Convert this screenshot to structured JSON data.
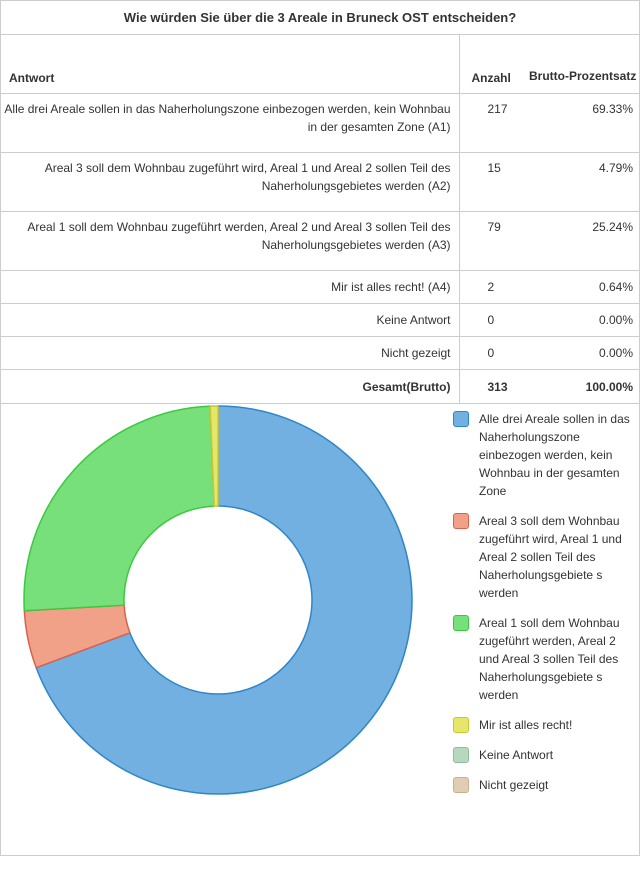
{
  "title": "Wie würden Sie über die 3 Areale in Bruneck OST entscheiden?",
  "table": {
    "headers": {
      "answer": "Antwort",
      "count": "Anzahl",
      "percent": "Brutto-Prozentsatz"
    },
    "rows": [
      {
        "answer": "Alle drei Areale sollen in das Naherholungszone einbezogen werden, kein Wohnbau in der gesamten Zone (A1)",
        "count": "217",
        "percent": "69.33%"
      },
      {
        "answer": "Areal 3 soll dem Wohnbau zugeführt wird, Areal 1 und Areal 2 sollen Teil des Naherholungsgebietes werden (A2)",
        "count": "15",
        "percent": "4.79%"
      },
      {
        "answer": "Areal 1 soll dem Wohnbau zugeführt werden, Areal 2 und Areal 3 sollen Teil des Naherholungsgebietes werden (A3)",
        "count": "79",
        "percent": "25.24%"
      },
      {
        "answer": "Mir ist alles recht! (A4)",
        "count": "2",
        "percent": "0.64%"
      },
      {
        "answer": "Keine Antwort",
        "count": "0",
        "percent": "0.00%"
      },
      {
        "answer": "Nicht gezeigt",
        "count": "0",
        "percent": "0.00%"
      }
    ],
    "total": {
      "label": "Gesamt(Brutto)",
      "count": "313",
      "percent": "100.00%"
    }
  },
  "chart_data": {
    "type": "pie",
    "donut": true,
    "categories": [
      "Alle drei Areale sollen in das Naherholungszone einbezogen werden, kein Wohnbau in der gesamten Zone",
      "Areal 3 soll dem Wohnbau zugeführt wird, Areal 1 und Areal 2 sollen Teil des Naherholungsgebiete s werden",
      "Areal 1 soll dem Wohnbau zugeführt werden, Areal 2 und Areal 3 sollen Teil des Naherholungsgebiete s werden",
      "Mir ist alles recht!",
      "Keine Antwort",
      "Nicht gezeigt"
    ],
    "values": [
      217,
      15,
      79,
      2,
      0,
      0
    ],
    "colors": [
      "#71b0e0",
      "#f0a188",
      "#77e07a",
      "#e6e76a",
      "#b8d8bd",
      "#e0cdb4"
    ],
    "strokes": [
      "#2e86c8",
      "#d9624a",
      "#3cc841",
      "#c8c832",
      "#8fbf99",
      "#c9b08c"
    ],
    "legend_position": "right"
  }
}
